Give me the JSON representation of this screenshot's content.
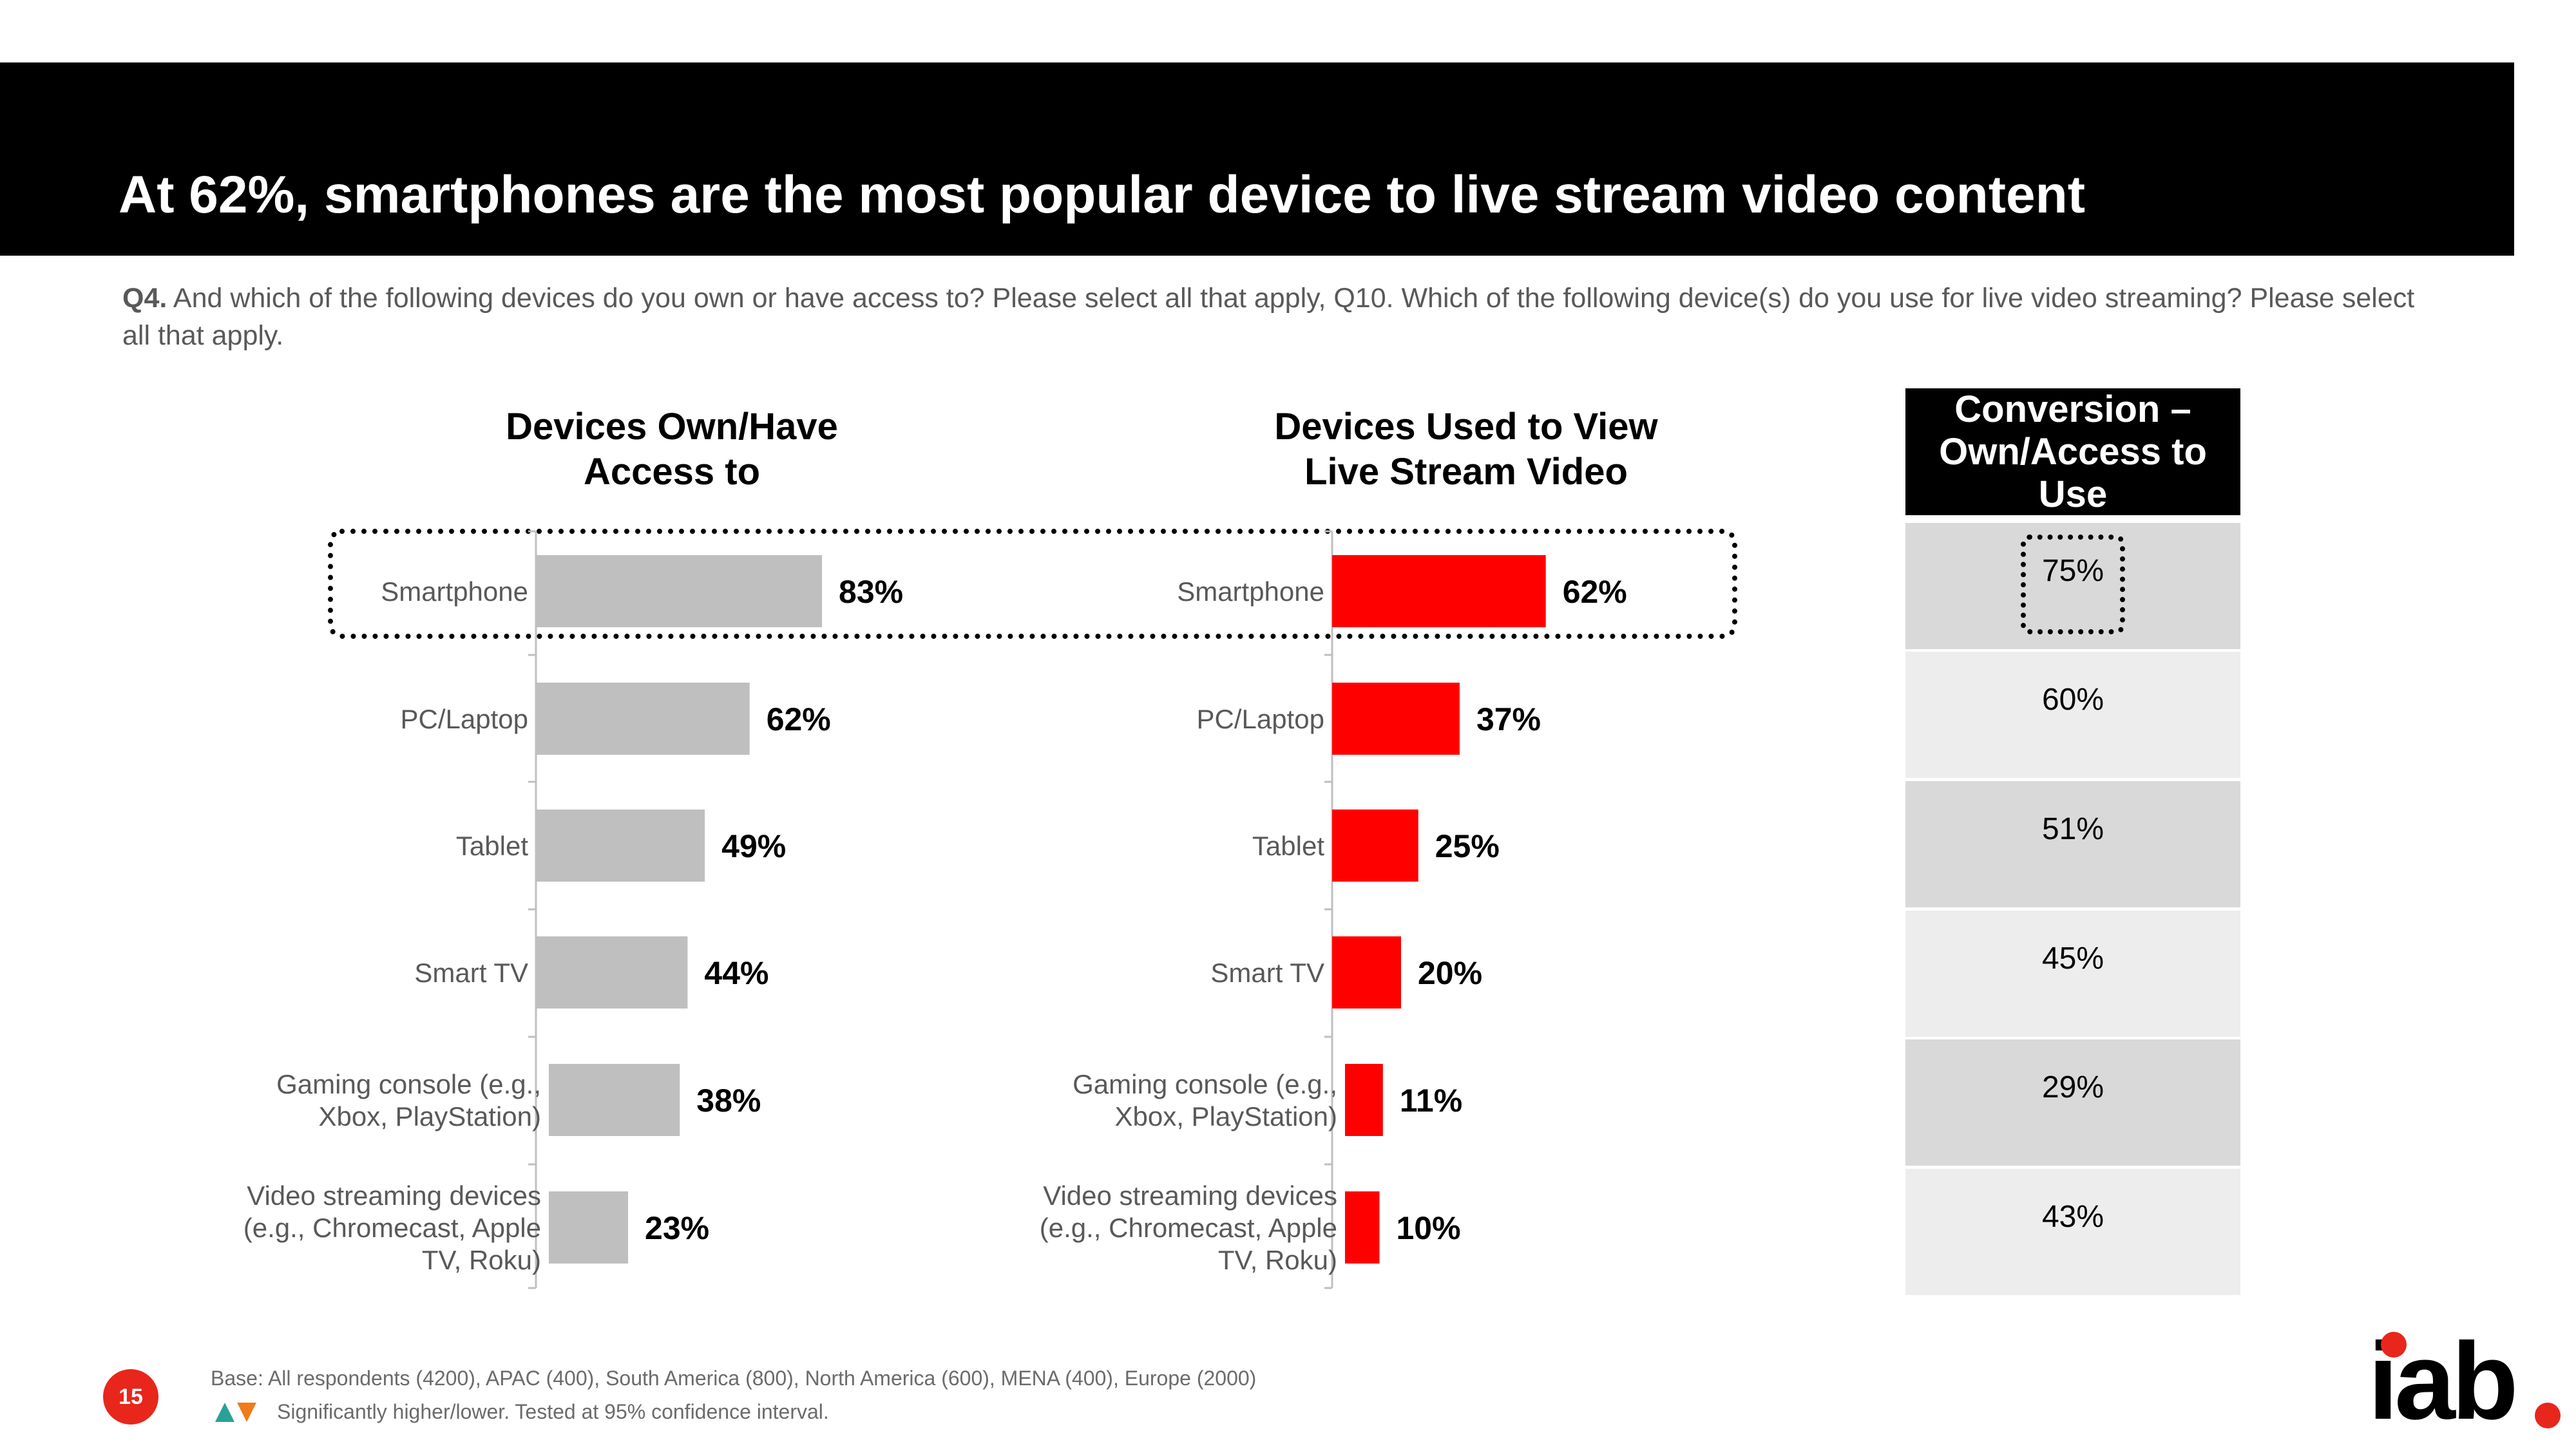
{
  "title": "At 62%, smartphones are the most popular device to live stream video content",
  "question": {
    "label": "Q4.",
    "text": " And which of the following devices do you own or have access to?  Please select all that apply, Q10. Which of the following device(s) do you use for live video streaming? Please select all that apply."
  },
  "chart_data": [
    {
      "type": "bar",
      "orientation": "horizontal",
      "title": "Devices Own/Have Access to",
      "categories": [
        "Smartphone",
        "PC/Laptop",
        "Tablet",
        "Smart TV",
        "Gaming console (e.g., Xbox, PlayStation)",
        "Video streaming devices (e.g., Chromecast, Apple TV, Roku)"
      ],
      "values": [
        83,
        62,
        49,
        44,
        38,
        23
      ],
      "value_labels": [
        "83%",
        "62%",
        "49%",
        "44%",
        "38%",
        "23%"
      ],
      "unit": "%",
      "color": "#bfbfbf"
    },
    {
      "type": "bar",
      "orientation": "horizontal",
      "title": "Devices Used to View Live Stream Video",
      "categories": [
        "Smartphone",
        "PC/Laptop",
        "Tablet",
        "Smart TV",
        "Gaming console (e.g., Xbox, PlayStation)",
        "Video streaming devices (e.g., Chromecast, Apple TV, Roku)"
      ],
      "values": [
        62,
        37,
        25,
        20,
        11,
        10
      ],
      "value_labels": [
        "62%",
        "37%",
        "25%",
        "20%",
        "11%",
        "10%"
      ],
      "unit": "%",
      "color": "#ff0000"
    },
    {
      "type": "table",
      "title": "Conversion – Own/Access to Use",
      "values": [
        75,
        60,
        51,
        45,
        29,
        43
      ],
      "value_labels": [
        "75%",
        "60%",
        "51%",
        "45%",
        "29%",
        "43%"
      ]
    }
  ],
  "labels": {
    "left_chart_title_1": "Devices Own/Have",
    "left_chart_title_2": "Access to",
    "right_chart_title_1": "Devices Used to View",
    "right_chart_title_2": "Live Stream Video",
    "conversion_title_1": "Conversion –",
    "conversion_title_2": "Own/Access to",
    "conversion_title_3": "Use",
    "category_lines": [
      [
        "Smartphone"
      ],
      [
        "PC/Laptop"
      ],
      [
        "Tablet"
      ],
      [
        "Smart TV"
      ],
      [
        "Gaming console (e.g.,",
        "Xbox, PlayStation)"
      ],
      [
        "Video streaming devices",
        "(e.g., Chromecast, Apple",
        "TV, Roku)"
      ]
    ]
  },
  "footer": {
    "page_number": "15",
    "base": "Base: All respondents (4200), APAC (400), South America (800), North America (600), MENA (400), Europe (2000)",
    "significance": "Significantly higher/lower. Tested at 95% confidence interval.",
    "logo": "iab"
  },
  "colors": {
    "accent_red": "#ff0000",
    "grey_bar": "#bfbfbf",
    "cell_dark": "#d9d9d9",
    "cell_light": "#ededed",
    "up_arrow": "#2aa198",
    "down_arrow": "#f07b1a"
  }
}
